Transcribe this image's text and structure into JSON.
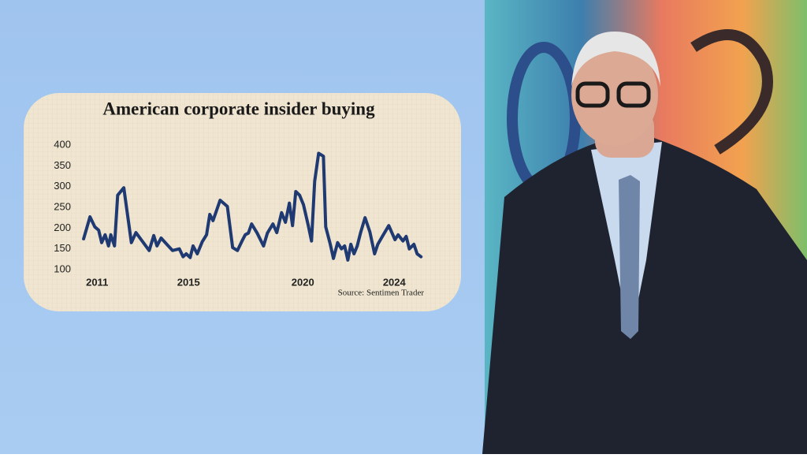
{
  "chart_data": {
    "type": "line",
    "title": "American corporate insider buying",
    "source": "Source: Sentimen Trader",
    "x": [
      2010.41,
      2010.69,
      2010.9,
      2011.07,
      2011.2,
      2011.35,
      2011.5,
      2011.6,
      2011.76,
      2011.9,
      2012.17,
      2012.5,
      2012.7,
      2013.28,
      2013.48,
      2013.62,
      2013.8,
      2014.3,
      2014.6,
      2014.76,
      2014.9,
      2015.07,
      2015.2,
      2015.38,
      2015.6,
      2015.79,
      2015.93,
      2016.07,
      2016.38,
      2016.7,
      2016.93,
      2017.14,
      2017.34,
      2017.48,
      2017.62,
      2017.76,
      2018,
      2018.28,
      2018.45,
      2018.69,
      2018.86,
      2019.07,
      2019.24,
      2019.41,
      2019.55,
      2019.69,
      2019.86,
      2020.03,
      2020.24,
      2020.38,
      2020.52,
      2020.69,
      2020.9,
      2021,
      2021.2,
      2021.34,
      2021.52,
      2021.69,
      2021.83,
      2021.97,
      2022.1,
      2022.24,
      2022.38,
      2022.52,
      2022.72,
      2022.93,
      2023.14,
      2023.28,
      2023.48,
      2023.76,
      2024.03,
      2024.17,
      2024.38,
      2024.52,
      2024.66,
      2024.86,
      2025,
      2025.17
    ],
    "series": [
      {
        "color": "#1f3a73",
        "values": [
          174,
          227,
          203,
          195,
          165,
          184,
          157,
          184,
          157,
          279,
          297,
          165,
          189,
          146,
          182,
          157,
          176,
          146,
          150,
          131,
          138,
          129,
          157,
          138,
          167,
          184,
          233,
          218,
          267,
          252,
          153,
          146,
          169,
          184,
          188,
          210,
          188,
          157,
          188,
          210,
          189,
          237,
          214,
          260,
          206,
          288,
          279,
          256,
          206,
          169,
          313,
          380,
          373,
          203,
          161,
          127,
          165,
          150,
          157,
          123,
          161,
          138,
          157,
          188,
          225,
          191,
          138,
          161,
          180,
          206,
          172,
          184,
          169,
          180,
          150,
          161,
          138,
          131
        ]
      }
    ],
    "xlim": [
      2010.2,
      2025.3
    ],
    "xticks": [
      2011,
      2015,
      2020,
      2024
    ],
    "ylim": [
      100,
      400
    ],
    "yticks": [
      100,
      150,
      200,
      250,
      300,
      350,
      400
    ],
    "grid": false
  }
}
